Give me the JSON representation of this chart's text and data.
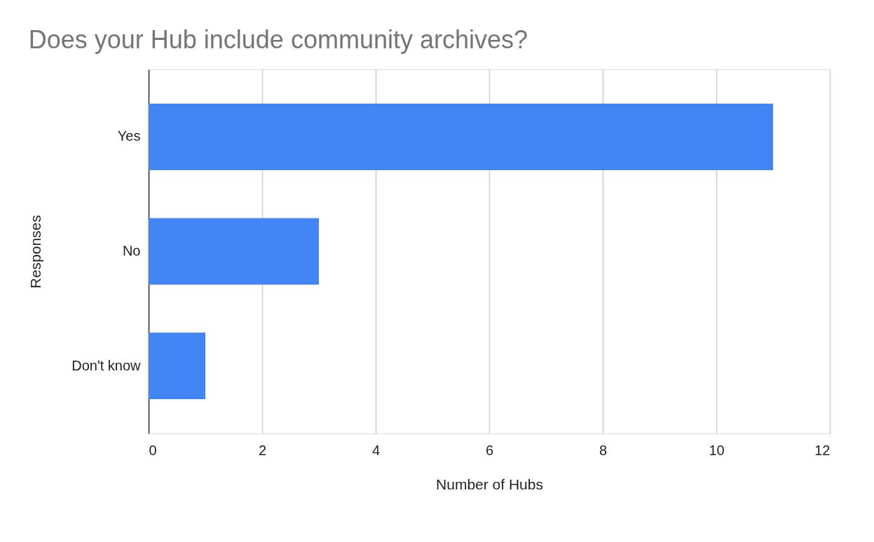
{
  "chart_data": {
    "type": "bar",
    "orientation": "horizontal",
    "title": "Does your Hub include community archives?",
    "xlabel": "Number of Hubs",
    "ylabel": "Responses",
    "categories": [
      "Yes",
      "No",
      "Don't know"
    ],
    "values": [
      11,
      3,
      1
    ],
    "color": "#4285f4",
    "xlim": [
      0,
      12
    ],
    "xticks": [
      0,
      2,
      4,
      6,
      8,
      10,
      12
    ],
    "grid": "x"
  }
}
